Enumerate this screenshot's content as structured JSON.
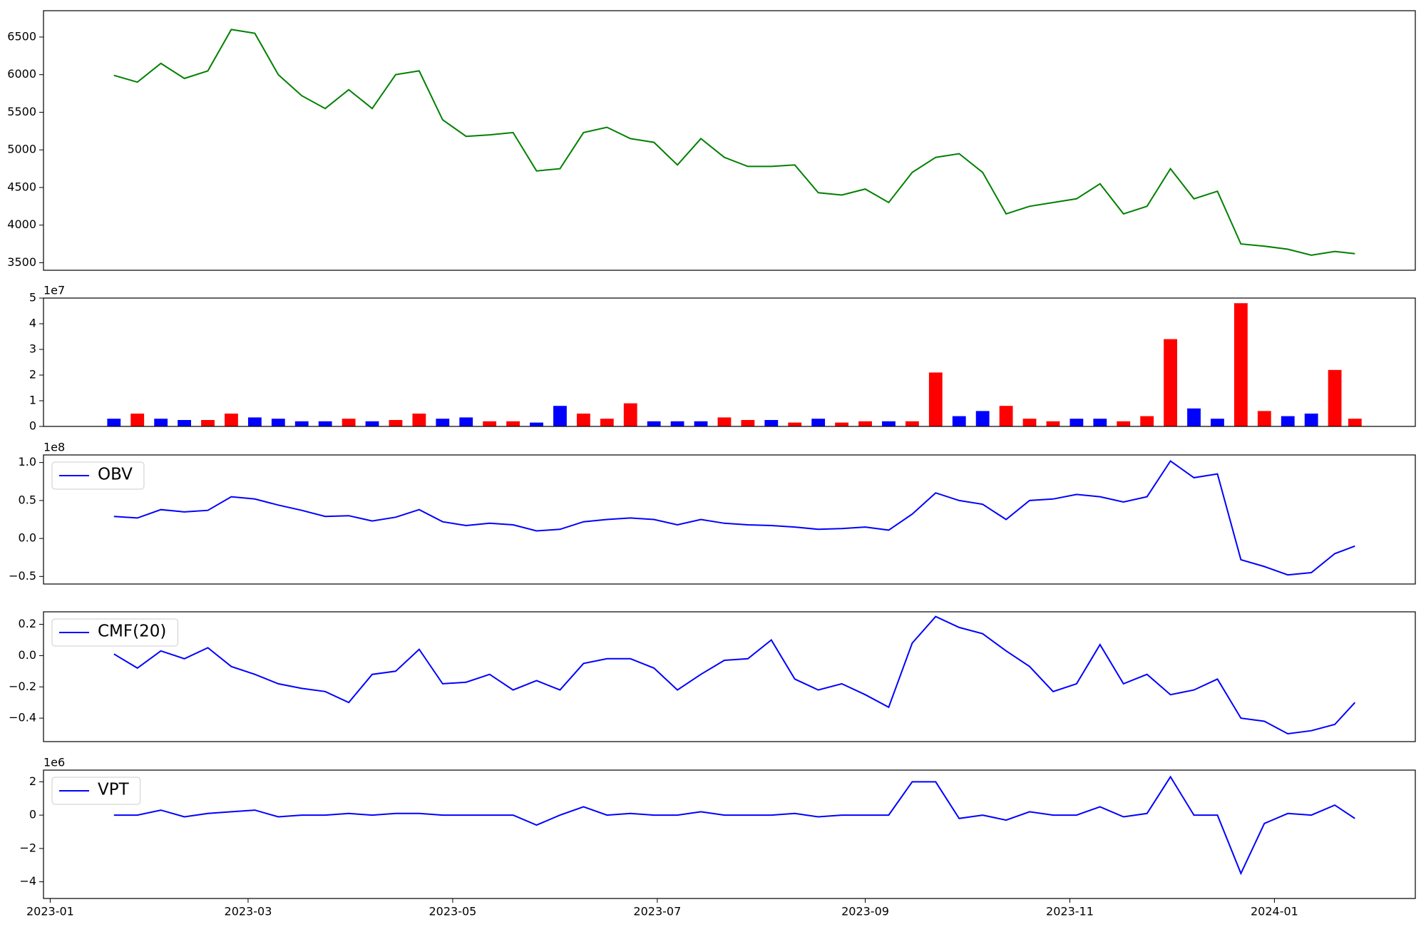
{
  "chart_data": [
    {
      "type": "line",
      "xlim": [
        "2022-12-30",
        "2024-02-12"
      ],
      "ylim": [
        3400,
        6850
      ],
      "yticks": [
        3500,
        4000,
        4500,
        5000,
        5500,
        6000,
        6500
      ],
      "x": [
        "2023-01-20",
        "2023-01-27",
        "2023-02-03",
        "2023-02-10",
        "2023-02-17",
        "2023-02-24",
        "2023-03-03",
        "2023-03-10",
        "2023-03-17",
        "2023-03-24",
        "2023-03-31",
        "2023-04-07",
        "2023-04-14",
        "2023-04-21",
        "2023-04-28",
        "2023-05-05",
        "2023-05-12",
        "2023-05-19",
        "2023-05-26",
        "2023-06-02",
        "2023-06-09",
        "2023-06-16",
        "2023-06-23",
        "2023-06-30",
        "2023-07-07",
        "2023-07-14",
        "2023-07-21",
        "2023-07-28",
        "2023-08-04",
        "2023-08-11",
        "2023-08-18",
        "2023-08-25",
        "2023-09-01",
        "2023-09-08",
        "2023-09-15",
        "2023-09-22",
        "2023-09-29",
        "2023-10-06",
        "2023-10-13",
        "2023-10-20",
        "2023-10-27",
        "2023-11-03",
        "2023-11-10",
        "2023-11-17",
        "2023-11-24",
        "2023-12-01",
        "2023-12-08",
        "2023-12-15",
        "2023-12-22",
        "2023-12-29",
        "2024-01-05",
        "2024-01-12",
        "2024-01-19",
        "2024-01-25"
      ],
      "series": [
        {
          "color": "green",
          "values": [
            5990,
            5900,
            6150,
            5950,
            6050,
            6600,
            6550,
            6000,
            5720,
            5550,
            5800,
            5550,
            6000,
            6050,
            5400,
            5180,
            5200,
            5230,
            4720,
            4750,
            5230,
            5300,
            5150,
            5100,
            4800,
            5150,
            4900,
            4780,
            4780,
            4800,
            4430,
            4400,
            4480,
            4300,
            4700,
            4900,
            4950,
            4700,
            4150,
            4250,
            4300,
            4350,
            4550,
            4150,
            4250,
            4750,
            4350,
            4450,
            3750,
            3720,
            3680,
            3600,
            3650,
            3620
          ]
        }
      ]
    },
    {
      "type": "bar",
      "xlim": [
        "2022-12-30",
        "2024-02-12"
      ],
      "ylim": [
        0,
        50000000
      ],
      "offset_label": "1e7",
      "yticks": [
        {
          "value": 0,
          "label": "0"
        },
        {
          "value": 10000000,
          "label": "1"
        },
        {
          "value": 20000000,
          "label": "2"
        },
        {
          "value": 30000000,
          "label": "3"
        },
        {
          "value": 40000000,
          "label": "4"
        },
        {
          "value": 50000000,
          "label": "5"
        }
      ],
      "x": [
        "2023-01-20",
        "2023-01-27",
        "2023-02-03",
        "2023-02-10",
        "2023-02-17",
        "2023-02-24",
        "2023-03-03",
        "2023-03-10",
        "2023-03-17",
        "2023-03-24",
        "2023-03-31",
        "2023-04-07",
        "2023-04-14",
        "2023-04-21",
        "2023-04-28",
        "2023-05-05",
        "2023-05-12",
        "2023-05-19",
        "2023-05-26",
        "2023-06-02",
        "2023-06-09",
        "2023-06-16",
        "2023-06-23",
        "2023-06-30",
        "2023-07-07",
        "2023-07-14",
        "2023-07-21",
        "2023-07-28",
        "2023-08-04",
        "2023-08-11",
        "2023-08-18",
        "2023-08-25",
        "2023-09-01",
        "2023-09-08",
        "2023-09-15",
        "2023-09-22",
        "2023-09-29",
        "2023-10-06",
        "2023-10-13",
        "2023-10-20",
        "2023-10-27",
        "2023-11-03",
        "2023-11-10",
        "2023-11-17",
        "2023-11-24",
        "2023-12-01",
        "2023-12-08",
        "2023-12-15",
        "2023-12-22",
        "2023-12-29",
        "2024-01-05",
        "2024-01-12",
        "2024-01-19",
        "2024-01-25"
      ],
      "values": [
        3000000,
        5000000,
        3000000,
        2500000,
        2500000,
        5000000,
        3500000,
        3000000,
        2000000,
        2000000,
        3000000,
        2000000,
        2500000,
        5000000,
        3000000,
        3500000,
        2000000,
        2000000,
        1500000,
        8000000,
        5000000,
        3000000,
        9000000,
        2000000,
        2000000,
        2000000,
        3500000,
        2500000,
        2500000,
        1500000,
        3000000,
        1500000,
        2000000,
        2000000,
        2000000,
        21000000,
        4000000,
        6000000,
        8000000,
        3000000,
        2000000,
        3000000,
        3000000,
        2000000,
        4000000,
        34000000,
        7000000,
        3000000,
        48000000,
        6000000,
        4000000,
        5000000,
        22000000,
        3000000
      ],
      "colors": [
        "blue",
        "red",
        "blue",
        "blue",
        "red",
        "red",
        "blue",
        "blue",
        "blue",
        "blue",
        "red",
        "blue",
        "red",
        "red",
        "blue",
        "blue",
        "red",
        "red",
        "blue",
        "blue",
        "red",
        "red",
        "red",
        "blue",
        "blue",
        "blue",
        "red",
        "red",
        "blue",
        "red",
        "blue",
        "red",
        "red",
        "blue",
        "red",
        "red",
        "blue",
        "blue",
        "red",
        "red",
        "red",
        "blue",
        "blue",
        "red",
        "red",
        "red",
        "blue",
        "blue",
        "red",
        "red",
        "blue",
        "blue",
        "red",
        "red"
      ]
    },
    {
      "type": "line",
      "xlim": [
        "2022-12-30",
        "2024-02-12"
      ],
      "ylim": [
        -60000000,
        110000000
      ],
      "offset_label": "1e8",
      "legend": "upper left",
      "yticks": [
        {
          "value": -50000000,
          "label": "−0.5"
        },
        {
          "value": 0,
          "label": "0.0"
        },
        {
          "value": 50000000,
          "label": "0.5"
        },
        {
          "value": 100000000,
          "label": "1.0"
        }
      ],
      "x": [
        "2023-01-20",
        "2023-01-27",
        "2023-02-03",
        "2023-02-10",
        "2023-02-17",
        "2023-02-24",
        "2023-03-03",
        "2023-03-10",
        "2023-03-17",
        "2023-03-24",
        "2023-03-31",
        "2023-04-07",
        "2023-04-14",
        "2023-04-21",
        "2023-04-28",
        "2023-05-05",
        "2023-05-12",
        "2023-05-19",
        "2023-05-26",
        "2023-06-02",
        "2023-06-09",
        "2023-06-16",
        "2023-06-23",
        "2023-06-30",
        "2023-07-07",
        "2023-07-14",
        "2023-07-21",
        "2023-07-28",
        "2023-08-04",
        "2023-08-11",
        "2023-08-18",
        "2023-08-25",
        "2023-09-01",
        "2023-09-08",
        "2023-09-15",
        "2023-09-22",
        "2023-09-29",
        "2023-10-06",
        "2023-10-13",
        "2023-10-20",
        "2023-10-27",
        "2023-11-03",
        "2023-11-10",
        "2023-11-17",
        "2023-11-24",
        "2023-12-01",
        "2023-12-08",
        "2023-12-15",
        "2023-12-22",
        "2023-12-29",
        "2024-01-05",
        "2024-01-12",
        "2024-01-19",
        "2024-01-25"
      ],
      "series": [
        {
          "name": "OBV",
          "color": "blue",
          "values": [
            29000000,
            27000000,
            38000000,
            35000000,
            37000000,
            55000000,
            52000000,
            44000000,
            37000000,
            29000000,
            30000000,
            23000000,
            28000000,
            38000000,
            22000000,
            17000000,
            20000000,
            18000000,
            10000000,
            12000000,
            22000000,
            25000000,
            27000000,
            25000000,
            18000000,
            25000000,
            20000000,
            18000000,
            17000000,
            15000000,
            12000000,
            13000000,
            15000000,
            11000000,
            32000000,
            60000000,
            50000000,
            45000000,
            25000000,
            50000000,
            52000000,
            58000000,
            55000000,
            48000000,
            55000000,
            102000000,
            80000000,
            85000000,
            -28000000,
            -37000000,
            -48000000,
            -45000000,
            -20000000,
            -10000000
          ]
        }
      ]
    },
    {
      "type": "line",
      "xlim": [
        "2022-12-30",
        "2024-02-12"
      ],
      "ylim": [
        -0.55,
        0.28
      ],
      "legend": "upper left",
      "yticks": [
        {
          "value": -0.4,
          "label": "−0.4"
        },
        {
          "value": -0.2,
          "label": "−0.2"
        },
        {
          "value": 0,
          "label": "0.0"
        },
        {
          "value": 0.2,
          "label": "0.2"
        }
      ],
      "x": [
        "2023-01-20",
        "2023-01-27",
        "2023-02-03",
        "2023-02-10",
        "2023-02-17",
        "2023-02-24",
        "2023-03-03",
        "2023-03-10",
        "2023-03-17",
        "2023-03-24",
        "2023-03-31",
        "2023-04-07",
        "2023-04-14",
        "2023-04-21",
        "2023-04-28",
        "2023-05-05",
        "2023-05-12",
        "2023-05-19",
        "2023-05-26",
        "2023-06-02",
        "2023-06-09",
        "2023-06-16",
        "2023-06-23",
        "2023-06-30",
        "2023-07-07",
        "2023-07-14",
        "2023-07-21",
        "2023-07-28",
        "2023-08-04",
        "2023-08-11",
        "2023-08-18",
        "2023-08-25",
        "2023-09-01",
        "2023-09-08",
        "2023-09-15",
        "2023-09-22",
        "2023-09-29",
        "2023-10-06",
        "2023-10-13",
        "2023-10-20",
        "2023-10-27",
        "2023-11-03",
        "2023-11-10",
        "2023-11-17",
        "2023-11-24",
        "2023-12-01",
        "2023-12-08",
        "2023-12-15",
        "2023-12-22",
        "2023-12-29",
        "2024-01-05",
        "2024-01-12",
        "2024-01-19",
        "2024-01-25"
      ],
      "series": [
        {
          "name": "CMF(20)",
          "color": "blue",
          "values": [
            0.01,
            -0.08,
            0.03,
            -0.02,
            0.05,
            -0.07,
            -0.12,
            -0.18,
            -0.21,
            -0.23,
            -0.3,
            -0.12,
            -0.1,
            0.04,
            -0.18,
            -0.17,
            -0.12,
            -0.22,
            -0.16,
            -0.22,
            -0.05,
            -0.02,
            -0.02,
            -0.08,
            -0.22,
            -0.12,
            -0.03,
            -0.02,
            0.1,
            -0.15,
            -0.22,
            -0.18,
            -0.25,
            -0.33,
            0.08,
            0.25,
            0.18,
            0.14,
            0.03,
            -0.07,
            -0.23,
            -0.18,
            0.07,
            -0.18,
            -0.12,
            -0.25,
            -0.22,
            -0.15,
            -0.4,
            -0.42,
            -0.5,
            -0.48,
            -0.44,
            -0.3
          ]
        }
      ]
    },
    {
      "type": "line",
      "xlim": [
        "2022-12-30",
        "2024-02-12"
      ],
      "ylim": [
        -5000000,
        2700000
      ],
      "offset_label": "1e6",
      "legend": "upper left",
      "yticks": [
        {
          "value": -4000000,
          "label": "−4"
        },
        {
          "value": -2000000,
          "label": "−2"
        },
        {
          "value": 0,
          "label": "0"
        },
        {
          "value": 2000000,
          "label": "2"
        }
      ],
      "xticks": [
        "2023-01",
        "2023-03",
        "2023-05",
        "2023-07",
        "2023-09",
        "2023-11",
        "2024-01"
      ],
      "x": [
        "2023-01-20",
        "2023-01-27",
        "2023-02-03",
        "2023-02-10",
        "2023-02-17",
        "2023-02-24",
        "2023-03-03",
        "2023-03-10",
        "2023-03-17",
        "2023-03-24",
        "2023-03-31",
        "2023-04-07",
        "2023-04-14",
        "2023-04-21",
        "2023-04-28",
        "2023-05-05",
        "2023-05-12",
        "2023-05-19",
        "2023-05-26",
        "2023-06-02",
        "2023-06-09",
        "2023-06-16",
        "2023-06-23",
        "2023-06-30",
        "2023-07-07",
        "2023-07-14",
        "2023-07-21",
        "2023-07-28",
        "2023-08-04",
        "2023-08-11",
        "2023-08-18",
        "2023-08-25",
        "2023-09-01",
        "2023-09-08",
        "2023-09-15",
        "2023-09-22",
        "2023-09-29",
        "2023-10-06",
        "2023-10-13",
        "2023-10-20",
        "2023-10-27",
        "2023-11-03",
        "2023-11-10",
        "2023-11-17",
        "2023-11-24",
        "2023-12-01",
        "2023-12-08",
        "2023-12-15",
        "2023-12-22",
        "2023-12-29",
        "2024-01-05",
        "2024-01-12",
        "2024-01-19",
        "2024-01-25"
      ],
      "series": [
        {
          "name": "VPT",
          "color": "blue",
          "values": [
            0,
            0,
            300000,
            -100000,
            100000,
            200000,
            300000,
            -100000,
            0,
            0,
            100000,
            0,
            100000,
            100000,
            0,
            0,
            0,
            0,
            -600000,
            0,
            500000,
            0,
            100000,
            0,
            0,
            200000,
            0,
            0,
            0,
            100000,
            -100000,
            0,
            0,
            0,
            2000000,
            2000000,
            -200000,
            0,
            -300000,
            200000,
            0,
            0,
            500000,
            -100000,
            100000,
            2300000,
            0,
            0,
            -3500000,
            -500000,
            100000,
            0,
            600000,
            -200000
          ]
        }
      ]
    }
  ]
}
